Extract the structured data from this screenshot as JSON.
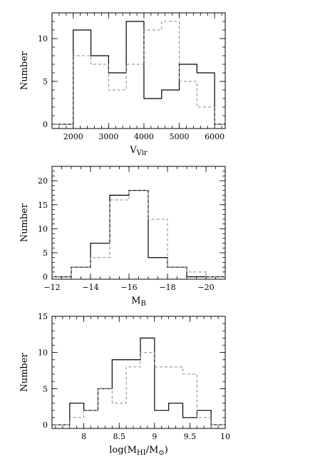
{
  "chart_data": [
    {
      "type": "histogram",
      "xlabel": "V",
      "xlabel_sub": "Vir",
      "ylabel": "Number",
      "xlim": [
        1400,
        6300
      ],
      "ylim": [
        -0.5,
        13
      ],
      "x_ticks": [
        2000,
        3000,
        4000,
        5000,
        6000
      ],
      "y_ticks": [
        0,
        5,
        10
      ],
      "bin_edges": [
        1500,
        2000,
        2500,
        3000,
        3500,
        4000,
        4500,
        5000,
        5500,
        6000,
        6500
      ],
      "series": [
        {
          "style": "solid",
          "values": [
            0,
            11,
            8,
            6,
            12,
            3,
            4,
            7,
            6,
            0
          ]
        },
        {
          "style": "dashed",
          "values": [
            0,
            8,
            7,
            4,
            7,
            11,
            12,
            5,
            2,
            0
          ]
        }
      ]
    },
    {
      "type": "histogram",
      "xlabel": "M",
      "xlabel_sub": "B",
      "ylabel": "Number",
      "xlim": [
        -12,
        -21
      ],
      "ylim": [
        -0.5,
        23
      ],
      "x_ticks": [
        -12,
        -14,
        -16,
        -18,
        -20
      ],
      "x_tick_labels": [
        "−12",
        "−14",
        "−16",
        "−18",
        "−20"
      ],
      "y_ticks": [
        0,
        5,
        10,
        15,
        20
      ],
      "bin_edges": [
        -12,
        -13,
        -14,
        -15,
        -16,
        -17,
        -18,
        -19,
        -20,
        -21
      ],
      "series": [
        {
          "style": "solid",
          "values": [
            0,
            2,
            7,
            17,
            18,
            4,
            2,
            0,
            0
          ]
        },
        {
          "style": "dashed",
          "values": [
            0,
            2,
            4,
            16,
            18,
            12,
            2,
            1,
            0
          ]
        }
      ]
    },
    {
      "type": "histogram",
      "xlabel": "log(M",
      "xlabel_sub": "HI",
      "xlabel_mid": "/M",
      "xlabel_sub2": "⊙",
      "xlabel_end": ")",
      "ylabel": "Number",
      "xlim": [
        7.55,
        10
      ],
      "ylim": [
        -0.5,
        15
      ],
      "x_ticks": [
        8,
        8.5,
        9,
        9.5,
        10
      ],
      "y_ticks": [
        0,
        5,
        10,
        15
      ],
      "bin_edges": [
        7.6,
        7.8,
        8.0,
        8.2,
        8.4,
        8.6,
        8.8,
        9.0,
        9.2,
        9.4,
        9.6,
        9.8,
        10.0
      ],
      "series": [
        {
          "style": "solid",
          "values": [
            0,
            3,
            2,
            5,
            9,
            9,
            12,
            2,
            3,
            1,
            2,
            0
          ]
        },
        {
          "style": "dashed",
          "values": [
            0,
            1,
            2,
            5,
            3,
            8,
            10,
            8,
            8,
            7,
            1,
            0
          ]
        }
      ]
    }
  ]
}
